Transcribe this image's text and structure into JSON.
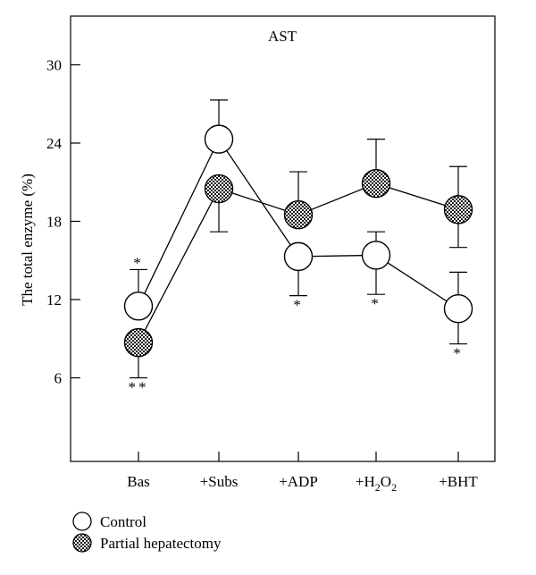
{
  "chart_data": {
    "type": "line",
    "title": "AST",
    "ylabel": "The total enzyme (%)",
    "xlabel": "",
    "ylim": [
      0,
      33
    ],
    "yticks": [
      6,
      12,
      18,
      24,
      30
    ],
    "grid": false,
    "categories": [
      "Bas",
      "+Subs",
      "+ADP",
      "+H2O2",
      "+BHT"
    ],
    "category_labels": [
      {
        "main": "Bas"
      },
      {
        "main": "+Subs"
      },
      {
        "main": "+ADP"
      },
      {
        "main": "+H",
        "sub1": "2",
        "mid": "O",
        "sub2": "2"
      },
      {
        "main": "+BHT"
      }
    ],
    "series": [
      {
        "name": "Control",
        "marker": "open-circle",
        "values": [
          11.5,
          24.3,
          15.3,
          15.4,
          11.3
        ],
        "error_upper": [
          14.3,
          27.3,
          null,
          17.2,
          14.1
        ],
        "error_lower": [
          null,
          null,
          12.3,
          12.4,
          8.6
        ],
        "annotations": [
          "*",
          "",
          "*",
          "*",
          "*"
        ],
        "annotation_pos": [
          "above",
          "",
          "below",
          "below",
          "below"
        ]
      },
      {
        "name": "Partial hepatectomy",
        "marker": "checkered-circle",
        "values": [
          8.7,
          20.5,
          18.5,
          20.9,
          18.9
        ],
        "error_upper": [
          null,
          null,
          21.8,
          24.3,
          22.2
        ],
        "error_lower": [
          6.0,
          17.2,
          null,
          null,
          16.0
        ],
        "annotations": [
          "**",
          "",
          "",
          "",
          ""
        ],
        "annotation_pos": [
          "below",
          "",
          "",
          "",
          ""
        ]
      }
    ],
    "legend_position": "bottom-left"
  }
}
